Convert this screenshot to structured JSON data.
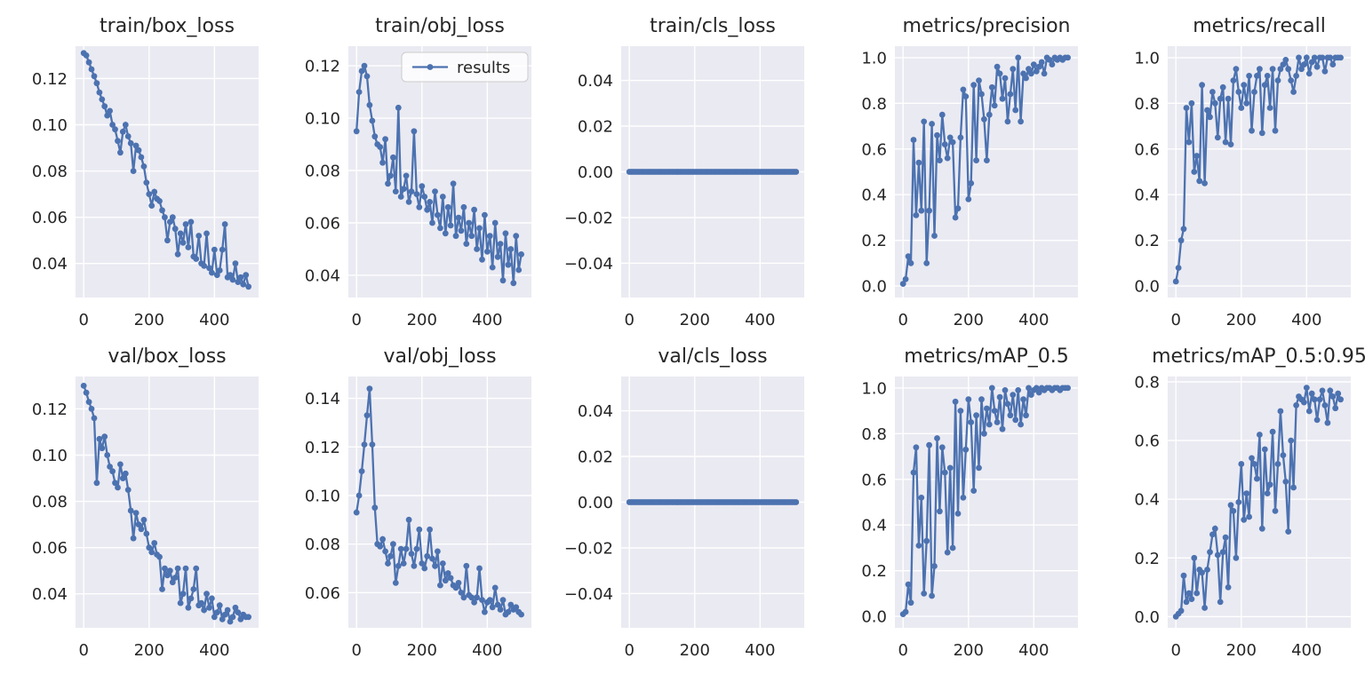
{
  "theme": {
    "background": "#ffffff",
    "axes_background": "#eaeaf2",
    "grid_color": "#ffffff",
    "line_color": "#4c72b0",
    "text_color": "#262626",
    "legend_face": "#ffffff",
    "legend_edge": "#cccccc"
  },
  "legend": {
    "label": "results",
    "position": "upper right of train/obj_loss"
  },
  "chart_data": [
    {
      "type": "line",
      "title": "train/box_loss",
      "series_name": "results",
      "x_ticks": [
        0,
        200,
        400
      ],
      "y_tick_values": [
        0.04,
        0.06,
        0.08,
        0.1,
        0.12
      ],
      "y_tick_labels": [
        "0.04",
        "0.06",
        "0.08",
        "0.10",
        "0.12"
      ],
      "xlim": [
        -25,
        535
      ],
      "ylim": [
        0.0253,
        0.134
      ],
      "grid": true,
      "x_start": 0,
      "x_step": 8,
      "values": [
        0.131,
        0.13,
        0.127,
        0.124,
        0.121,
        0.118,
        0.114,
        0.111,
        0.108,
        0.104,
        0.106,
        0.1,
        0.098,
        0.093,
        0.088,
        0.097,
        0.1,
        0.095,
        0.092,
        0.08,
        0.091,
        0.089,
        0.086,
        0.082,
        0.075,
        0.07,
        0.065,
        0.071,
        0.068,
        0.067,
        0.063,
        0.06,
        0.05,
        0.058,
        0.06,
        0.055,
        0.044,
        0.053,
        0.049,
        0.057,
        0.047,
        0.058,
        0.043,
        0.042,
        0.052,
        0.04,
        0.039,
        0.053,
        0.038,
        0.036,
        0.046,
        0.035,
        0.037,
        0.046,
        0.057,
        0.034,
        0.035,
        0.033,
        0.04,
        0.032,
        0.034,
        0.031,
        0.035,
        0.03
      ]
    },
    {
      "type": "line",
      "title": "train/obj_loss",
      "series_name": "results",
      "show_legend": true,
      "x_ticks": [
        0,
        200,
        400
      ],
      "y_tick_values": [
        0.04,
        0.06,
        0.08,
        0.1,
        0.12
      ],
      "y_tick_labels": [
        "0.04",
        "0.06",
        "0.08",
        "0.10",
        "0.12"
      ],
      "xlim": [
        -25,
        535
      ],
      "ylim": [
        0.0315,
        0.1275
      ],
      "grid": true,
      "x_start": 0,
      "x_step": 8,
      "values": [
        0.095,
        0.11,
        0.118,
        0.12,
        0.116,
        0.105,
        0.099,
        0.093,
        0.09,
        0.089,
        0.083,
        0.092,
        0.075,
        0.078,
        0.085,
        0.072,
        0.104,
        0.07,
        0.073,
        0.078,
        0.068,
        0.072,
        0.095,
        0.071,
        0.066,
        0.074,
        0.07,
        0.065,
        0.068,
        0.06,
        0.072,
        0.063,
        0.058,
        0.07,
        0.056,
        0.066,
        0.059,
        0.075,
        0.055,
        0.062,
        0.057,
        0.066,
        0.052,
        0.06,
        0.055,
        0.065,
        0.05,
        0.058,
        0.046,
        0.063,
        0.049,
        0.055,
        0.043,
        0.06,
        0.047,
        0.052,
        0.038,
        0.056,
        0.044,
        0.05,
        0.037,
        0.055,
        0.042,
        0.048
      ]
    },
    {
      "type": "line",
      "title": "train/cls_loss",
      "series_name": "results",
      "x_ticks": [
        0,
        200,
        400
      ],
      "y_tick_values": [
        -0.04,
        -0.02,
        0.0,
        0.02,
        0.04
      ],
      "y_tick_labels": [
        "−0.04",
        "−0.02",
        "0.00",
        "0.02",
        "0.04"
      ],
      "xlim": [
        -25,
        535
      ],
      "ylim": [
        -0.055,
        0.055
      ],
      "grid": true,
      "x_start": 0,
      "x_step": 6,
      "values": [
        0,
        0,
        0,
        0,
        0,
        0,
        0,
        0,
        0,
        0,
        0,
        0,
        0,
        0,
        0,
        0,
        0,
        0,
        0,
        0,
        0,
        0,
        0,
        0,
        0,
        0,
        0,
        0,
        0,
        0,
        0,
        0,
        0,
        0,
        0,
        0,
        0,
        0,
        0,
        0,
        0,
        0,
        0,
        0,
        0,
        0,
        0,
        0,
        0,
        0,
        0,
        0,
        0,
        0,
        0,
        0,
        0,
        0,
        0,
        0,
        0,
        0,
        0,
        0,
        0,
        0,
        0,
        0,
        0,
        0,
        0,
        0,
        0,
        0,
        0,
        0,
        0,
        0,
        0,
        0,
        0,
        0,
        0,
        0,
        0,
        0
      ]
    },
    {
      "type": "line",
      "title": "metrics/precision",
      "series_name": "results",
      "x_ticks": [
        0,
        200,
        400
      ],
      "y_tick_values": [
        0.0,
        0.2,
        0.4,
        0.6,
        0.8,
        1.0
      ],
      "y_tick_labels": [
        "0.0",
        "0.2",
        "0.4",
        "0.6",
        "0.8",
        "1.0"
      ],
      "xlim": [
        -25,
        535
      ],
      "ylim": [
        -0.05,
        1.05
      ],
      "grid": true,
      "x_start": 0,
      "x_step": 8,
      "values": [
        0.01,
        0.03,
        0.13,
        0.1,
        0.64,
        0.31,
        0.54,
        0.33,
        0.72,
        0.1,
        0.33,
        0.71,
        0.22,
        0.66,
        0.55,
        0.75,
        0.62,
        0.56,
        0.65,
        0.63,
        0.3,
        0.34,
        0.65,
        0.86,
        0.83,
        0.38,
        0.45,
        0.88,
        0.55,
        0.9,
        0.84,
        0.73,
        0.55,
        0.75,
        0.87,
        0.79,
        0.96,
        0.93,
        0.82,
        0.91,
        0.72,
        0.84,
        0.95,
        0.77,
        1.0,
        0.72,
        0.93,
        0.91,
        0.95,
        0.93,
        0.97,
        0.94,
        0.96,
        0.98,
        0.93,
        1.0,
        0.99,
        0.97,
        1.0,
        0.99,
        1.0,
        0.99,
        1.0,
        1.0
      ]
    },
    {
      "type": "line",
      "title": "metrics/recall",
      "series_name": "results",
      "x_ticks": [
        0,
        200,
        400
      ],
      "y_tick_values": [
        0.0,
        0.2,
        0.4,
        0.6,
        0.8,
        1.0
      ],
      "y_tick_labels": [
        "0.0",
        "0.2",
        "0.4",
        "0.6",
        "0.8",
        "1.0"
      ],
      "xlim": [
        -25,
        535
      ],
      "ylim": [
        -0.05,
        1.05
      ],
      "grid": true,
      "x_start": 0,
      "x_step": 8,
      "values": [
        0.02,
        0.08,
        0.2,
        0.25,
        0.78,
        0.63,
        0.8,
        0.5,
        0.57,
        0.46,
        0.88,
        0.45,
        0.77,
        0.74,
        0.85,
        0.8,
        0.65,
        0.82,
        0.87,
        0.63,
        0.82,
        0.62,
        0.9,
        0.95,
        0.85,
        0.78,
        0.88,
        0.8,
        0.92,
        0.68,
        0.85,
        0.92,
        0.95,
        0.67,
        0.88,
        0.92,
        0.78,
        0.95,
        0.68,
        0.9,
        0.95,
        0.97,
        0.99,
        0.95,
        0.9,
        0.85,
        0.92,
        1.0,
        0.95,
        0.97,
        1.0,
        0.93,
        0.98,
        1.0,
        0.96,
        1.0,
        1.0,
        0.94,
        1.0,
        1.0,
        0.97,
        1.0,
        1.0,
        1.0
      ]
    },
    {
      "type": "line",
      "title": "val/box_loss",
      "series_name": "results",
      "x_ticks": [
        0,
        200,
        400
      ],
      "y_tick_values": [
        0.04,
        0.06,
        0.08,
        0.1,
        0.12
      ],
      "y_tick_labels": [
        "0.04",
        "0.06",
        "0.08",
        "0.10",
        "0.12"
      ],
      "xlim": [
        -25,
        535
      ],
      "ylim": [
        0.0253,
        0.134
      ],
      "grid": true,
      "x_start": 0,
      "x_step": 8,
      "values": [
        0.13,
        0.127,
        0.123,
        0.12,
        0.116,
        0.088,
        0.107,
        0.103,
        0.108,
        0.1,
        0.095,
        0.093,
        0.088,
        0.086,
        0.096,
        0.09,
        0.092,
        0.085,
        0.076,
        0.064,
        0.075,
        0.07,
        0.068,
        0.072,
        0.066,
        0.06,
        0.058,
        0.062,
        0.057,
        0.056,
        0.042,
        0.051,
        0.048,
        0.05,
        0.045,
        0.047,
        0.051,
        0.036,
        0.04,
        0.051,
        0.034,
        0.038,
        0.042,
        0.051,
        0.035,
        0.036,
        0.033,
        0.04,
        0.034,
        0.038,
        0.03,
        0.032,
        0.035,
        0.029,
        0.031,
        0.033,
        0.028,
        0.03,
        0.034,
        0.032,
        0.029,
        0.031,
        0.03,
        0.03
      ]
    },
    {
      "type": "line",
      "title": "val/obj_loss",
      "series_name": "results",
      "x_ticks": [
        0,
        200,
        400
      ],
      "y_tick_values": [
        0.06,
        0.08,
        0.1,
        0.12,
        0.14
      ],
      "y_tick_labels": [
        "0.06",
        "0.08",
        "0.10",
        "0.12",
        "0.14"
      ],
      "xlim": [
        -25,
        535
      ],
      "ylim": [
        0.0455,
        0.149
      ],
      "grid": true,
      "x_start": 0,
      "x_step": 8,
      "values": [
        0.093,
        0.1,
        0.11,
        0.121,
        0.133,
        0.144,
        0.121,
        0.095,
        0.08,
        0.079,
        0.082,
        0.077,
        0.072,
        0.075,
        0.08,
        0.064,
        0.071,
        0.078,
        0.072,
        0.078,
        0.09,
        0.076,
        0.071,
        0.078,
        0.086,
        0.072,
        0.07,
        0.075,
        0.086,
        0.074,
        0.071,
        0.077,
        0.063,
        0.072,
        0.065,
        0.068,
        0.066,
        0.063,
        0.062,
        0.064,
        0.06,
        0.058,
        0.071,
        0.059,
        0.058,
        0.056,
        0.058,
        0.07,
        0.057,
        0.052,
        0.056,
        0.057,
        0.054,
        0.062,
        0.055,
        0.053,
        0.057,
        0.051,
        0.052,
        0.055,
        0.053,
        0.054,
        0.052,
        0.051
      ]
    },
    {
      "type": "line",
      "title": "val/cls_loss",
      "series_name": "results",
      "x_ticks": [
        0,
        200,
        400
      ],
      "y_tick_values": [
        -0.04,
        -0.02,
        0.0,
        0.02,
        0.04
      ],
      "y_tick_labels": [
        "−0.04",
        "−0.02",
        "0.00",
        "0.02",
        "0.04"
      ],
      "xlim": [
        -25,
        535
      ],
      "ylim": [
        -0.055,
        0.055
      ],
      "grid": true,
      "x_start": 0,
      "x_step": 6,
      "values": [
        0,
        0,
        0,
        0,
        0,
        0,
        0,
        0,
        0,
        0,
        0,
        0,
        0,
        0,
        0,
        0,
        0,
        0,
        0,
        0,
        0,
        0,
        0,
        0,
        0,
        0,
        0,
        0,
        0,
        0,
        0,
        0,
        0,
        0,
        0,
        0,
        0,
        0,
        0,
        0,
        0,
        0,
        0,
        0,
        0,
        0,
        0,
        0,
        0,
        0,
        0,
        0,
        0,
        0,
        0,
        0,
        0,
        0,
        0,
        0,
        0,
        0,
        0,
        0,
        0,
        0,
        0,
        0,
        0,
        0,
        0,
        0,
        0,
        0,
        0,
        0,
        0,
        0,
        0,
        0,
        0,
        0,
        0,
        0,
        0,
        0
      ]
    },
    {
      "type": "line",
      "title": "metrics/mAP_0.5",
      "series_name": "results",
      "x_ticks": [
        0,
        200,
        400
      ],
      "y_tick_values": [
        0.0,
        0.2,
        0.4,
        0.6,
        0.8,
        1.0
      ],
      "y_tick_labels": [
        "0.0",
        "0.2",
        "0.4",
        "0.6",
        "0.8",
        "1.0"
      ],
      "xlim": [
        -25,
        535
      ],
      "ylim": [
        -0.05,
        1.05
      ],
      "grid": true,
      "x_start": 0,
      "x_step": 8,
      "values": [
        0.01,
        0.02,
        0.14,
        0.06,
        0.63,
        0.74,
        0.31,
        0.52,
        0.1,
        0.33,
        0.75,
        0.09,
        0.22,
        0.78,
        0.46,
        0.74,
        0.63,
        0.28,
        0.65,
        0.3,
        0.94,
        0.45,
        0.9,
        0.52,
        0.73,
        0.95,
        0.85,
        0.55,
        0.88,
        0.65,
        0.95,
        0.8,
        0.91,
        0.84,
        1.0,
        0.9,
        0.85,
        0.96,
        0.82,
        0.99,
        0.93,
        0.88,
        0.97,
        0.86,
        0.99,
        0.84,
        0.95,
        0.88,
        1.0,
        0.97,
        0.99,
        1.0,
        0.98,
        1.0,
        0.99,
        1.0,
        1.0,
        0.99,
        1.0,
        1.0,
        0.99,
        1.0,
        1.0,
        1.0
      ]
    },
    {
      "type": "line",
      "title": "metrics/mAP_0.5:0.95",
      "series_name": "results",
      "x_ticks": [
        0,
        200,
        400
      ],
      "y_tick_values": [
        0.0,
        0.2,
        0.4,
        0.6,
        0.8
      ],
      "y_tick_labels": [
        "0.0",
        "0.2",
        "0.4",
        "0.6",
        "0.8"
      ],
      "xlim": [
        -25,
        535
      ],
      "ylim": [
        -0.038,
        0.818
      ],
      "grid": true,
      "x_start": 0,
      "x_step": 8,
      "values": [
        0.0,
        0.01,
        0.02,
        0.14,
        0.05,
        0.08,
        0.06,
        0.2,
        0.08,
        0.16,
        0.15,
        0.03,
        0.16,
        0.22,
        0.28,
        0.3,
        0.21,
        0.05,
        0.22,
        0.27,
        0.1,
        0.38,
        0.36,
        0.2,
        0.39,
        0.52,
        0.33,
        0.42,
        0.34,
        0.54,
        0.52,
        0.47,
        0.62,
        0.3,
        0.57,
        0.42,
        0.45,
        0.63,
        0.36,
        0.52,
        0.7,
        0.55,
        0.46,
        0.29,
        0.6,
        0.44,
        0.72,
        0.75,
        0.74,
        0.73,
        0.78,
        0.7,
        0.76,
        0.74,
        0.67,
        0.74,
        0.77,
        0.72,
        0.66,
        0.77,
        0.75,
        0.71,
        0.76,
        0.74
      ]
    }
  ]
}
